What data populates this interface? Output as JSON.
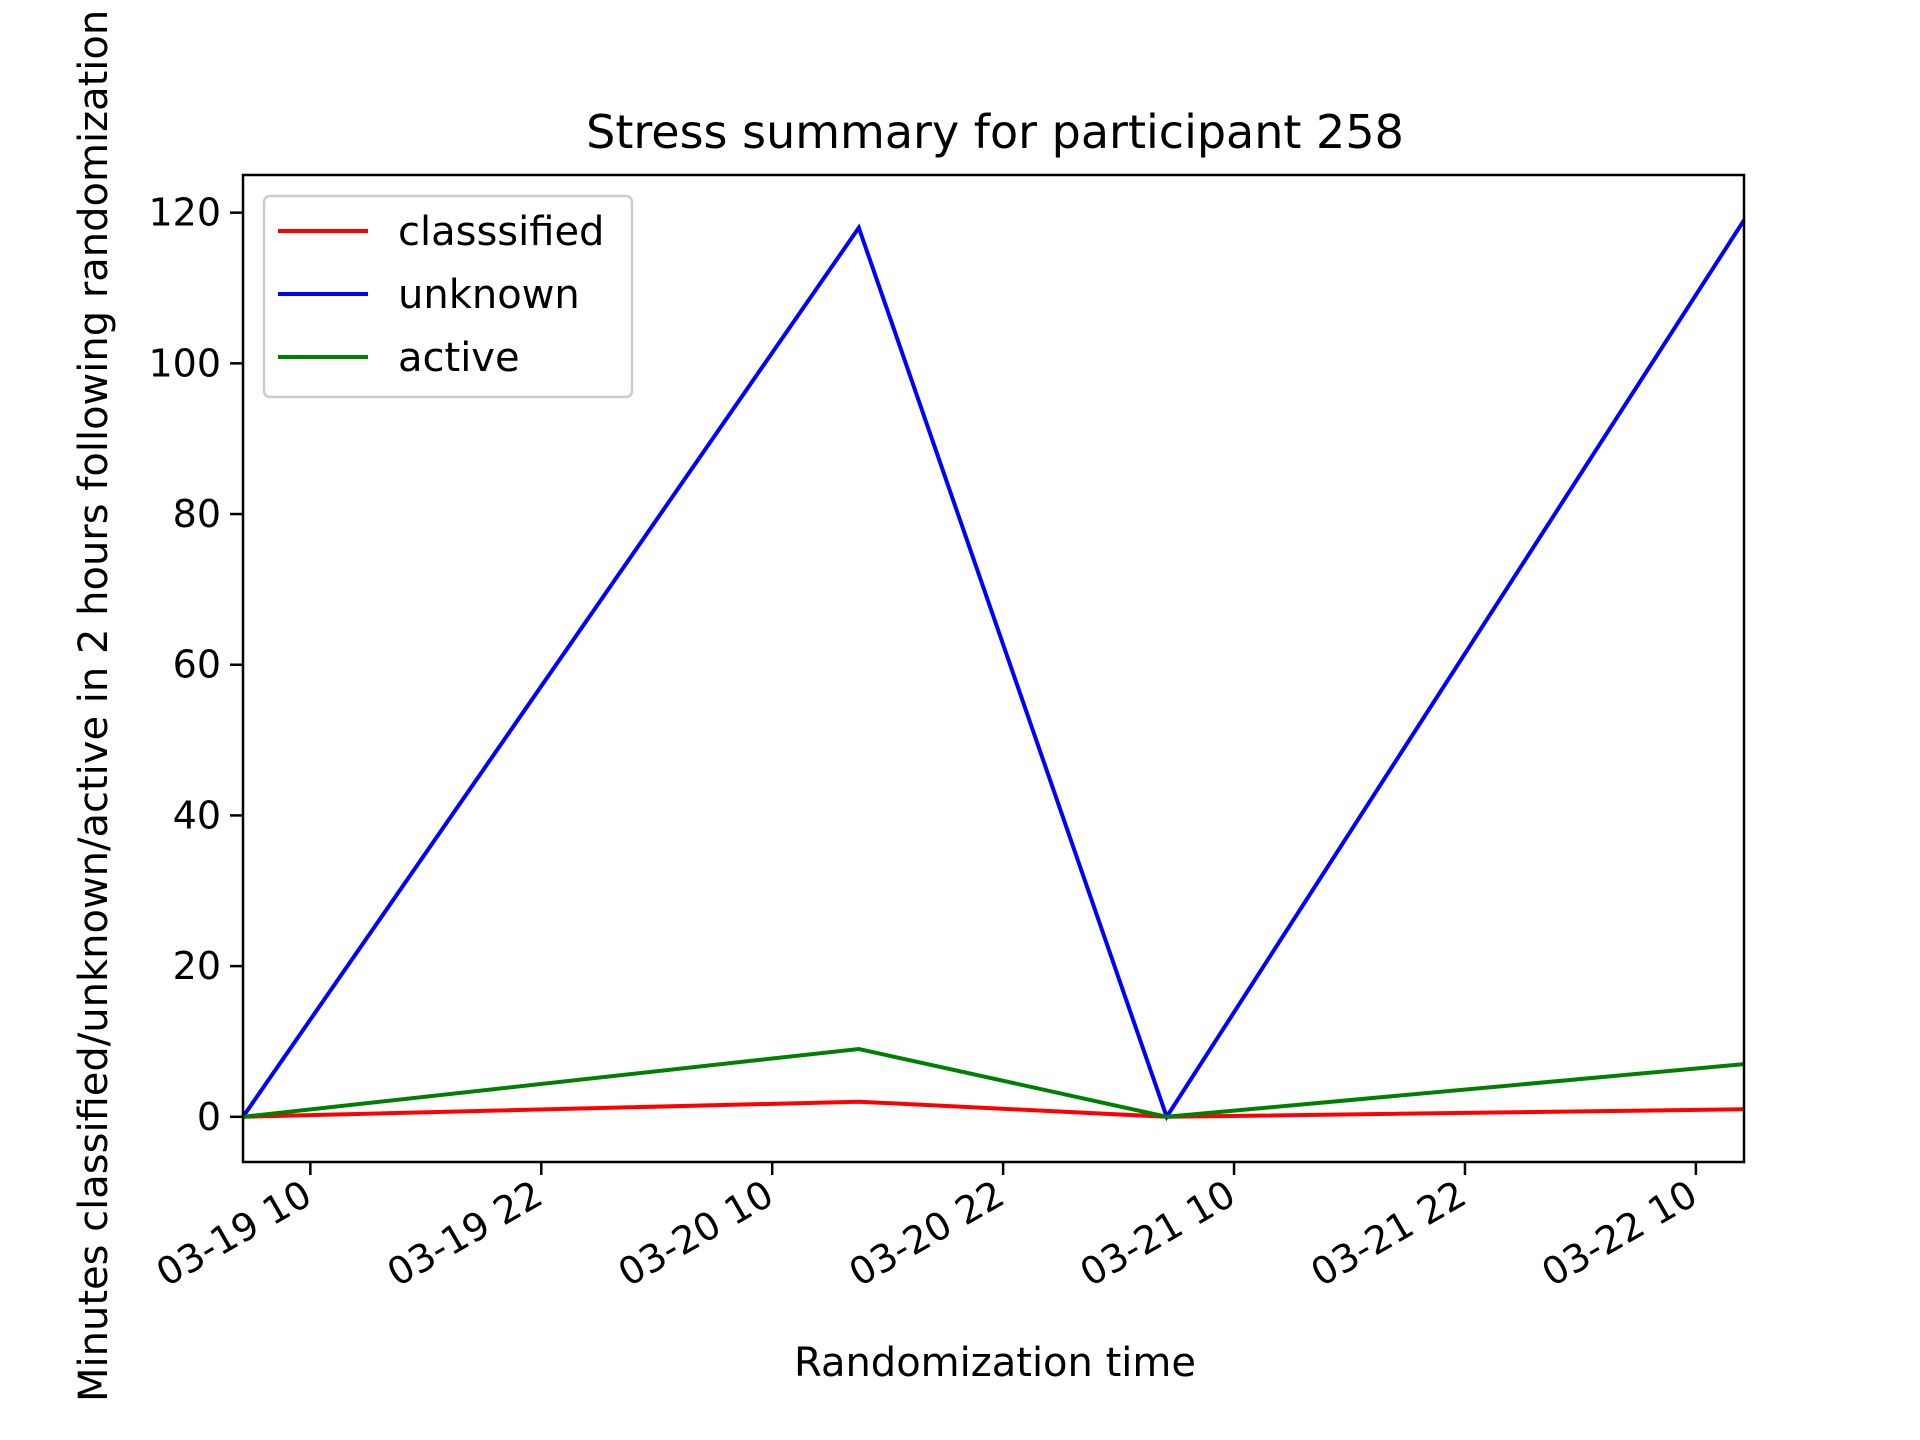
{
  "chart_data": {
    "type": "line",
    "title": "Stress summary for participant 258",
    "xlabel": "Randomization time",
    "ylabel": "Minutes classified/unknown/active in 2 hours following randomization",
    "x": [
      "03-19 06:30",
      "03-20 14:30",
      "03-21 06:30",
      "03-22 12:30"
    ],
    "series": [
      {
        "name": "classsified",
        "color": "#ff0000",
        "values": [
          0,
          2,
          0,
          1
        ]
      },
      {
        "name": "unknown",
        "color": "#0000ff",
        "values": [
          0,
          118,
          0,
          119
        ]
      },
      {
        "name": "active",
        "color": "#008000",
        "values": [
          0,
          9,
          0,
          7
        ]
      }
    ],
    "xlim": [
      "03-19 06:30",
      "03-22 12:30"
    ],
    "ylim": [
      -6,
      125
    ],
    "xticks": [
      {
        "t": "03-19 10:00",
        "label": "03-19 10"
      },
      {
        "t": "03-19 22:00",
        "label": "03-19 22"
      },
      {
        "t": "03-20 10:00",
        "label": "03-20 10"
      },
      {
        "t": "03-20 22:00",
        "label": "03-20 22"
      },
      {
        "t": "03-21 10:00",
        "label": "03-21 10"
      },
      {
        "t": "03-21 22:00",
        "label": "03-21 22"
      },
      {
        "t": "03-22 10:00",
        "label": "03-22 10"
      }
    ],
    "yticks": [
      0,
      20,
      40,
      60,
      80,
      100,
      120
    ],
    "grid": false,
    "legend": "upper-left"
  }
}
